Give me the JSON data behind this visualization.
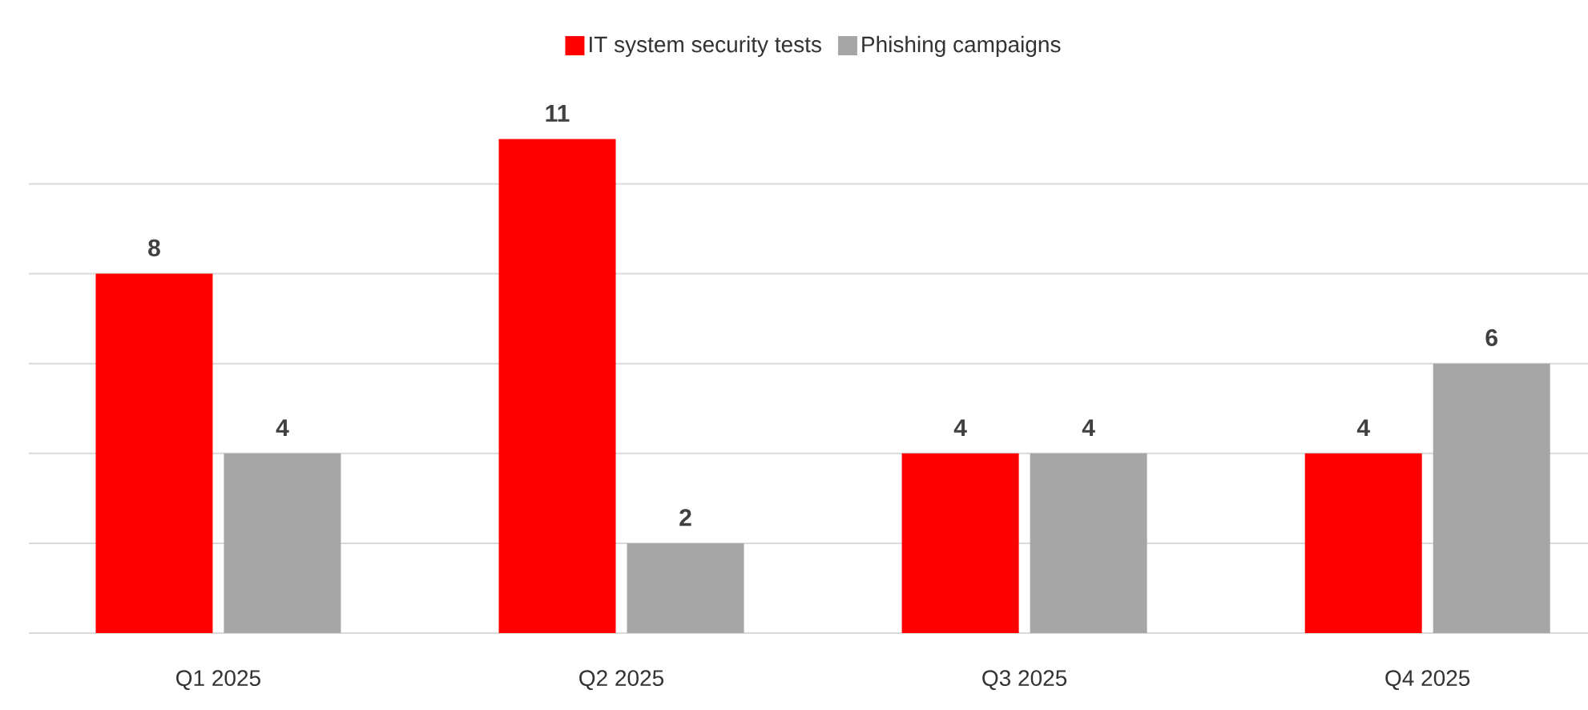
{
  "chart_data": {
    "type": "bar",
    "categories": [
      "Q1 2025",
      "Q2 2025",
      "Q3 2025",
      "Q4 2025"
    ],
    "series": [
      {
        "name": "IT system security tests",
        "color": "#ff0000",
        "values": [
          8,
          11,
          4,
          4
        ]
      },
      {
        "name": "Phishing campaigns",
        "color": "#a6a6a6",
        "values": [
          4,
          2,
          4,
          6
        ]
      }
    ],
    "yticks": [
      {
        "value": 0,
        "label": null
      },
      {
        "value": 2,
        "label": null
      },
      {
        "value": 4,
        "label": null
      },
      {
        "value": 6,
        "label": null
      },
      {
        "value": 8,
        "label": null
      },
      {
        "value": 10,
        "label": null
      }
    ],
    "tick_labels": "x",
    "grid": "y",
    "legend": "top",
    "data_labels": true
  }
}
